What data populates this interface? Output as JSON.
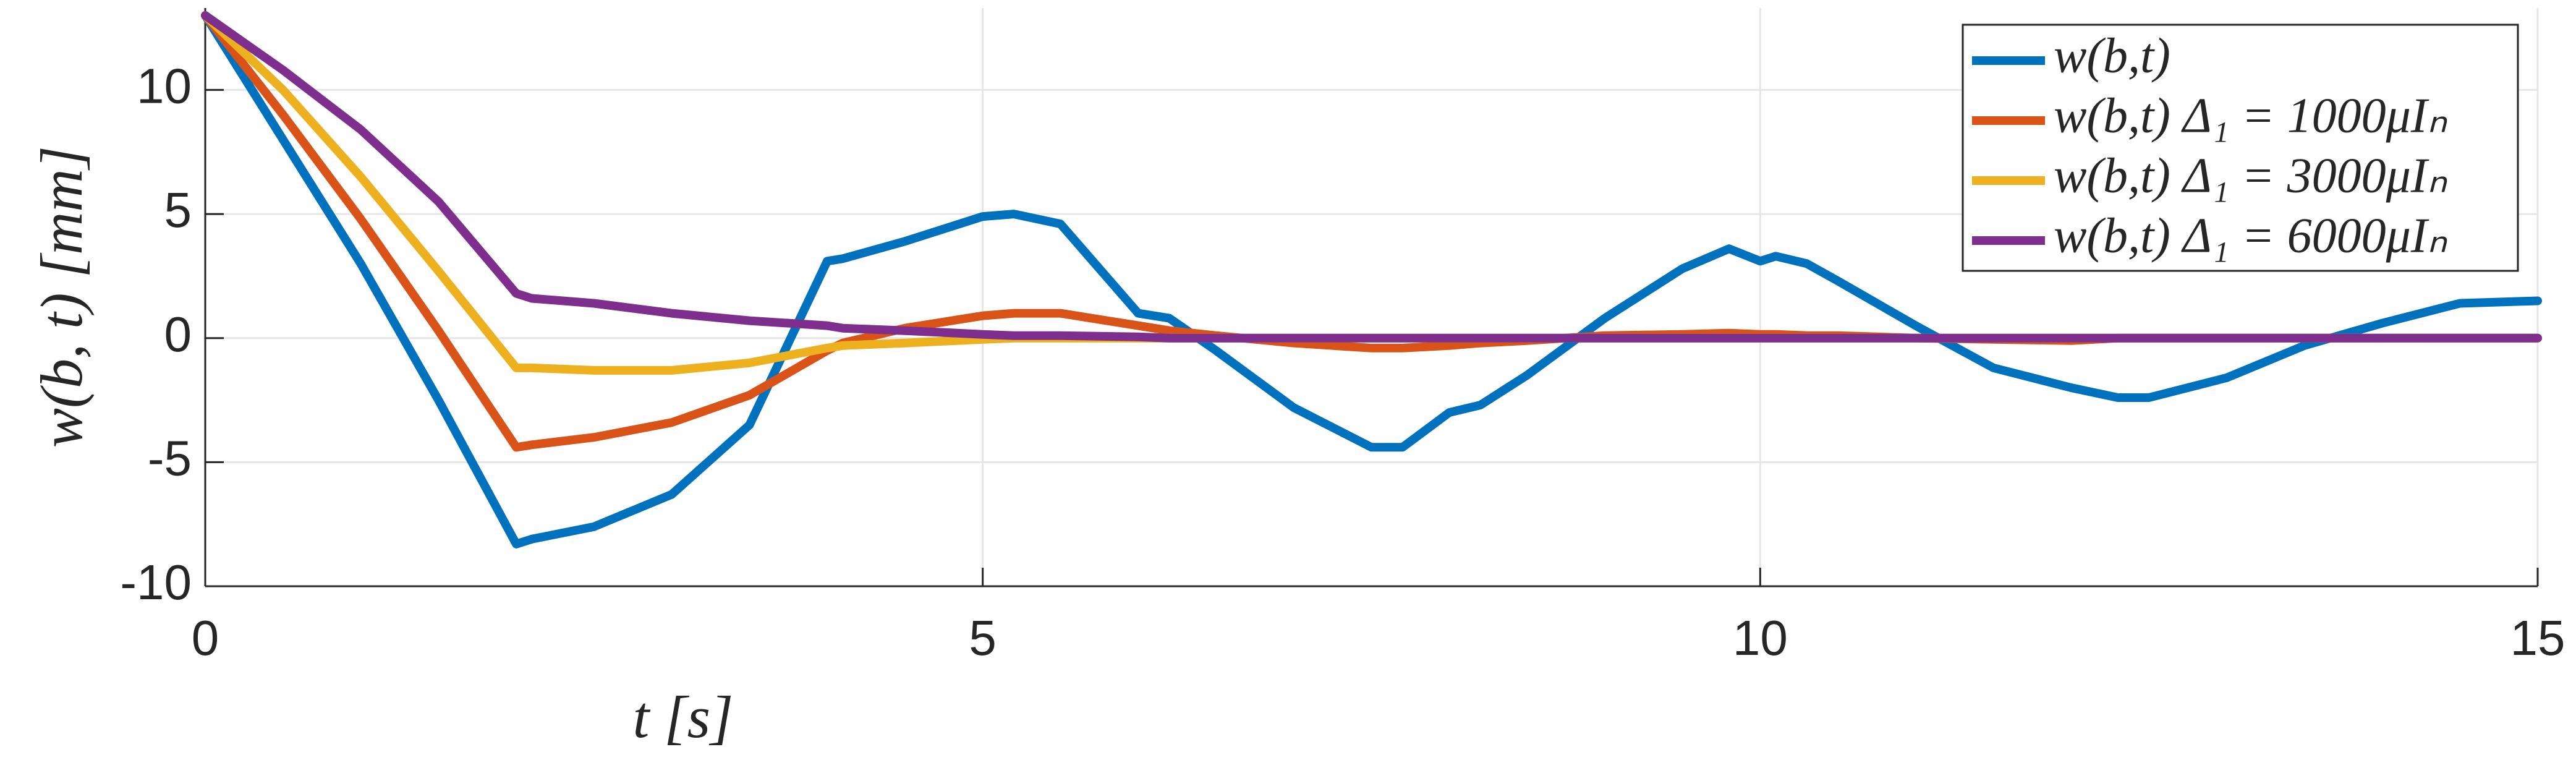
{
  "chart_data": {
    "type": "line",
    "xlabel": "t [s]",
    "ylabel": "w(b, t) [mm]",
    "x": [
      0,
      0.5,
      1,
      1.5,
      2,
      2.1,
      2.5,
      3,
      3.5,
      4,
      4.1,
      4.5,
      5,
      5.2,
      5.5,
      6,
      6.2,
      6.5,
      7,
      7.5,
      7.7,
      8,
      8.2,
      8.5,
      9,
      9.5,
      9.8,
      10,
      10.1,
      10.3,
      10.5,
      11,
      11.5,
      12,
      12.3,
      12.5,
      13,
      13.5,
      14,
      14.5,
      15
    ],
    "series": [
      {
        "name": "w(b,t)",
        "color": "#0072BD",
        "values": [
          13,
          8.0,
          3.0,
          -2.5,
          -8.3,
          -8.1,
          -7.6,
          -6.3,
          -3.5,
          3.1,
          3.2,
          3.9,
          4.9,
          5.0,
          4.6,
          1.0,
          0.8,
          -0.5,
          -2.8,
          -4.4,
          -4.4,
          -3.0,
          -2.7,
          -1.5,
          0.8,
          2.8,
          3.6,
          3.1,
          3.3,
          3.0,
          2.3,
          0.5,
          -1.2,
          -2.0,
          -2.4,
          -2.4,
          -1.6,
          -0.3,
          0.6,
          1.4,
          1.5
        ]
      },
      {
        "name": "w(b,t) Δ₁ = 1000μIₙ",
        "color": "#D95319",
        "values": [
          13,
          9.0,
          4.8,
          0.3,
          -4.4,
          -4.3,
          -4.0,
          -3.4,
          -2.3,
          -0.5,
          -0.2,
          0.4,
          0.9,
          1.0,
          1.0,
          0.5,
          0.3,
          0.1,
          -0.2,
          -0.4,
          -0.4,
          -0.3,
          -0.2,
          -0.1,
          0.1,
          0.15,
          0.2,
          0.15,
          0.15,
          0.1,
          0.1,
          0,
          -0.05,
          -0.1,
          0,
          0,
          0,
          0,
          0,
          0,
          0
        ]
      },
      {
        "name": "w(b,t) Δ₁ = 3000μIₙ",
        "color": "#EDB120",
        "values": [
          13,
          10.0,
          6.5,
          2.7,
          -1.2,
          -1.2,
          -1.3,
          -1.3,
          -1.0,
          -0.4,
          -0.3,
          -0.2,
          -0.05,
          0,
          0,
          0,
          0,
          0,
          0,
          0,
          0,
          0,
          0,
          0,
          0,
          0,
          0,
          0,
          0,
          0,
          0,
          0,
          0,
          0,
          0,
          0,
          0,
          0,
          0,
          0,
          0
        ]
      },
      {
        "name": "w(b,t) Δ₁ = 6000μIₙ",
        "color": "#7E2F8E",
        "values": [
          13,
          10.8,
          8.4,
          5.5,
          1.8,
          1.6,
          1.4,
          1.0,
          0.7,
          0.5,
          0.4,
          0.3,
          0.15,
          0.1,
          0.1,
          0.05,
          0,
          0,
          0,
          0,
          0,
          0,
          0,
          0,
          0,
          0,
          0,
          0,
          0,
          0,
          0,
          0,
          0,
          0,
          0,
          0,
          0,
          0,
          0,
          0,
          0
        ]
      }
    ],
    "xlim": [
      0,
      15
    ],
    "xticks": [
      0,
      5,
      10,
      15
    ],
    "ylim": [
      -10,
      13.3
    ],
    "yticks": [
      -10,
      -5,
      0,
      5,
      10
    ],
    "grid": true,
    "legend": "top-right"
  }
}
